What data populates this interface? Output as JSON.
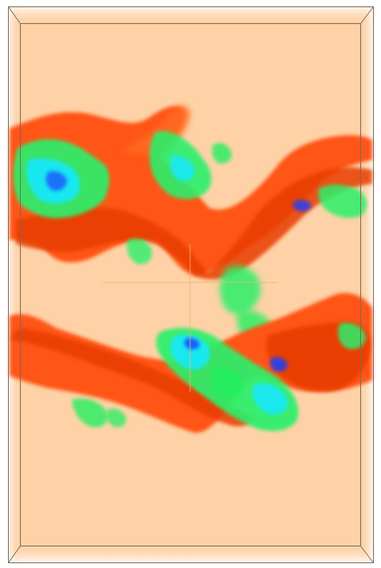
{
  "viewer": {
    "background": "#ffffff",
    "volume_fill": "#fed2a6",
    "box_line_color": "#7a6a60",
    "crosshair_color": "#f0b070",
    "colormap": [
      "#1840ff",
      "#12e6ff",
      "#20f060",
      "#b8e860",
      "#ff5a10",
      "#e83a00"
    ]
  }
}
